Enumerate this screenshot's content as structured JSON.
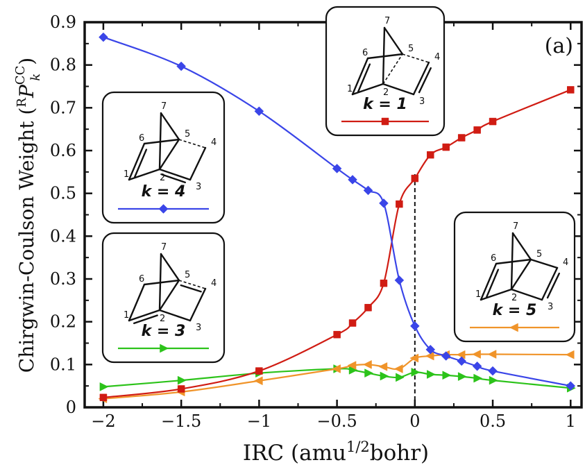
{
  "chart_data": {
    "type": "line",
    "panel_label": "(a)",
    "xlabel_main": "IRC (amu",
    "xlabel_sup": "1/2",
    "xlabel_tail": "bohr)",
    "ylabel_main": "Chirgwin-Coulson Weight (",
    "ylabel_sup": "R",
    "ylabel_P": "P",
    "ylabel_sub": "k",
    "ylabel_supCC": "CC",
    "ylabel_close": ")",
    "xlim": [
      -2.12,
      1.07
    ],
    "ylim": [
      0,
      0.9
    ],
    "xticks": [
      -2,
      -1.5,
      -1,
      -0.5,
      0,
      0.5,
      1
    ],
    "xtick_labels": [
      "−2",
      "−1.5",
      "−1",
      "−0.5",
      "0",
      "0.5",
      "1"
    ],
    "yticks": [
      0,
      0.1,
      0.2,
      0.3,
      0.4,
      0.5,
      0.6,
      0.7,
      0.8,
      0.9
    ],
    "ytick_labels": [
      "0",
      "0.1",
      "0.2",
      "0.3",
      "0.4",
      "0.5",
      "0.6",
      "0.7",
      "0.8",
      "0.9"
    ],
    "grid": false,
    "vline_x": 0,
    "series": [
      {
        "name": "k = 4",
        "color": "#3a45e8",
        "marker": "diamond",
        "x": [
          -2,
          -1.5,
          -1,
          -0.5,
          -0.4,
          -0.3,
          -0.2,
          -0.1,
          0,
          0.1,
          0.2,
          0.3,
          0.4,
          0.5,
          1
        ],
        "y": [
          0.865,
          0.797,
          0.692,
          0.558,
          0.532,
          0.507,
          0.477,
          0.297,
          0.19,
          0.135,
          0.12,
          0.108,
          0.096,
          0.085,
          0.05
        ]
      },
      {
        "name": "k = 1",
        "color": "#d01c13",
        "marker": "square",
        "x": [
          -2,
          -1.5,
          -1,
          -0.5,
          -0.4,
          -0.3,
          -0.2,
          -0.1,
          0,
          0.1,
          0.2,
          0.3,
          0.4,
          0.5,
          1
        ],
        "y": [
          0.023,
          0.043,
          0.085,
          0.17,
          0.197,
          0.233,
          0.29,
          0.475,
          0.535,
          0.59,
          0.608,
          0.63,
          0.648,
          0.668,
          0.742
        ]
      },
      {
        "name": "k = 3",
        "color": "#2cc31a",
        "marker": "triangle-right",
        "x": [
          -2,
          -1.5,
          -1,
          -0.5,
          -0.4,
          -0.3,
          -0.2,
          -0.1,
          0,
          0.1,
          0.2,
          0.3,
          0.4,
          0.5,
          1
        ],
        "y": [
          0.048,
          0.063,
          0.08,
          0.09,
          0.087,
          0.08,
          0.073,
          0.07,
          0.082,
          0.077,
          0.075,
          0.072,
          0.068,
          0.063,
          0.045
        ]
      },
      {
        "name": "k = 5",
        "color": "#f0942a",
        "marker": "triangle-left",
        "x": [
          -2,
          -1.5,
          -1,
          -0.5,
          -0.4,
          -0.3,
          -0.2,
          -0.1,
          0,
          0.1,
          0.2,
          0.3,
          0.4,
          0.5,
          1
        ],
        "y": [
          0.02,
          0.036,
          0.062,
          0.09,
          0.098,
          0.1,
          0.095,
          0.09,
          0.115,
          0.12,
          0.123,
          0.123,
          0.124,
          0.124,
          0.123
        ]
      }
    ],
    "insets": [
      {
        "id": "k1",
        "label": "k = 1",
        "series": 1,
        "atoms": [
          "1",
          "2",
          "3",
          "4",
          "5",
          "6",
          "7"
        ]
      },
      {
        "id": "k4",
        "label": "k = 4",
        "series": 0,
        "atoms": [
          "1",
          "2",
          "3",
          "4",
          "5",
          "6",
          "7"
        ]
      },
      {
        "id": "k3",
        "label": "k = 3",
        "series": 2,
        "atoms": [
          "1",
          "2",
          "3",
          "4",
          "5",
          "6",
          "7"
        ]
      },
      {
        "id": "k5",
        "label": "k = 5",
        "series": 3,
        "atoms": [
          "1",
          "2",
          "3",
          "4",
          "5",
          "6",
          "7"
        ]
      }
    ]
  }
}
